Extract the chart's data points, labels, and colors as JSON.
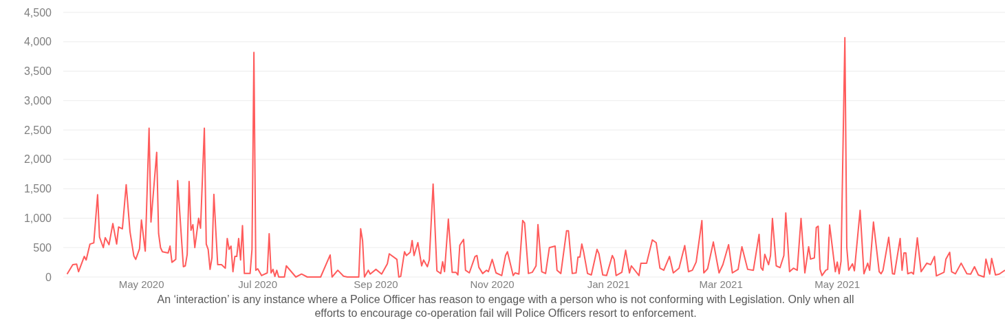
{
  "chart_data": {
    "type": "line",
    "color": "#ff5b5b",
    "line_style": "solid",
    "marker": "none",
    "grid": "y",
    "x": [
      "2020-03-23",
      "2020-03-26",
      "2020-03-28",
      "2020-03-29",
      "2020-04-01",
      "2020-04-02",
      "2020-04-04",
      "2020-04-06",
      "2020-04-08",
      "2020-04-09",
      "2020-04-11",
      "2020-04-12",
      "2020-04-14",
      "2020-04-16",
      "2020-04-18",
      "2020-04-19",
      "2020-04-21",
      "2020-04-23",
      "2020-04-25",
      "2020-04-27",
      "2020-04-28",
      "2020-04-30",
      "2020-05-01",
      "2020-05-03",
      "2020-05-05",
      "2020-05-06",
      "2020-05-09",
      "2020-05-10",
      "2020-05-11",
      "2020-05-12",
      "2020-05-15",
      "2020-05-16",
      "2020-05-17",
      "2020-05-19",
      "2020-05-20",
      "2020-05-22",
      "2020-05-23",
      "2020-05-24",
      "2020-05-25",
      "2020-05-26",
      "2020-05-27",
      "2020-05-28",
      "2020-05-29",
      "2020-05-31",
      "2020-06-01",
      "2020-06-03",
      "2020-06-04",
      "2020-06-05",
      "2020-06-06",
      "2020-06-07",
      "2020-06-08",
      "2020-06-09",
      "2020-06-10",
      "2020-06-12",
      "2020-06-14",
      "2020-06-15",
      "2020-06-16",
      "2020-06-17",
      "2020-06-18",
      "2020-06-19",
      "2020-06-20",
      "2020-06-21",
      "2020-06-22",
      "2020-06-23",
      "2020-06-24",
      "2020-06-27",
      "2020-06-28",
      "2020-06-29",
      "2020-06-30",
      "2020-07-01",
      "2020-07-03",
      "2020-07-06",
      "2020-07-07",
      "2020-07-08",
      "2020-07-09",
      "2020-07-10",
      "2020-07-11",
      "2020-07-12",
      "2020-07-15",
      "2020-07-16",
      "2020-07-21",
      "2020-07-24",
      "2020-07-27",
      "2020-08-03",
      "2020-08-08",
      "2020-08-09",
      "2020-08-12",
      "2020-08-15",
      "2020-08-17",
      "2020-08-23",
      "2020-08-24",
      "2020-08-25",
      "2020-08-26",
      "2020-08-28",
      "2020-08-29",
      "2020-09-01",
      "2020-09-04",
      "2020-09-07",
      "2020-09-08",
      "2020-09-12",
      "2020-09-13",
      "2020-09-14",
      "2020-09-16",
      "2020-09-17",
      "2020-09-19",
      "2020-09-20",
      "2020-09-21",
      "2020-09-23",
      "2020-09-25",
      "2020-09-26",
      "2020-09-28",
      "2020-09-29",
      "2020-10-01",
      "2020-10-03",
      "2020-10-05",
      "2020-10-06",
      "2020-10-07",
      "2020-10-09",
      "2020-10-11",
      "2020-10-13",
      "2020-10-14",
      "2020-10-15",
      "2020-10-17",
      "2020-10-18",
      "2020-10-20",
      "2020-10-23",
      "2020-10-24",
      "2020-10-25",
      "2020-10-27",
      "2020-10-29",
      "2020-10-30",
      "2020-11-01",
      "2020-11-03",
      "2020-11-06",
      "2020-11-08",
      "2020-11-09",
      "2020-11-12",
      "2020-11-13",
      "2020-11-15",
      "2020-11-17",
      "2020-11-18",
      "2020-11-20",
      "2020-11-22",
      "2020-11-24",
      "2020-11-25",
      "2020-11-27",
      "2020-11-29",
      "2020-12-01",
      "2020-12-04",
      "2020-12-05",
      "2020-12-07",
      "2020-12-10",
      "2020-12-11",
      "2020-12-13",
      "2020-12-15",
      "2020-12-16",
      "2020-12-17",
      "2020-12-18",
      "2020-12-19",
      "2020-12-21",
      "2020-12-23",
      "2020-12-26",
      "2020-12-27",
      "2020-12-29",
      "2020-12-31",
      "2021-01-03",
      "2021-01-04",
      "2021-01-05",
      "2021-01-08",
      "2021-01-10",
      "2021-01-12",
      "2021-01-13",
      "2021-01-17",
      "2021-01-18",
      "2021-01-21",
      "2021-01-24",
      "2021-01-26",
      "2021-01-28",
      "2021-01-30",
      "2021-02-02",
      "2021-02-04",
      "2021-02-07",
      "2021-02-10",
      "2021-02-12",
      "2021-02-14",
      "2021-02-16",
      "2021-02-19",
      "2021-02-20",
      "2021-02-22",
      "2021-02-25",
      "2021-02-28",
      "2021-03-02",
      "2021-03-05",
      "2021-03-07",
      "2021-03-10",
      "2021-03-12",
      "2021-03-15",
      "2021-03-18",
      "2021-03-21",
      "2021-03-22",
      "2021-03-23",
      "2021-03-24",
      "2021-03-26",
      "2021-03-27",
      "2021-03-28",
      "2021-03-30",
      "2021-04-01",
      "2021-04-03",
      "2021-04-04",
      "2021-04-06",
      "2021-04-08",
      "2021-04-10",
      "2021-04-12",
      "2021-04-14",
      "2021-04-16",
      "2021-04-17",
      "2021-04-19",
      "2021-04-20",
      "2021-04-21",
      "2021-04-22",
      "2021-04-23",
      "2021-04-25",
      "2021-04-26",
      "2021-04-27",
      "2021-04-30",
      "2021-05-01",
      "2021-05-02",
      "2021-05-03",
      "2021-05-05",
      "2021-05-06",
      "2021-05-07",
      "2021-05-09",
      "2021-05-10",
      "2021-05-13",
      "2021-05-15",
      "2021-05-17",
      "2021-05-18",
      "2021-05-20",
      "2021-05-23",
      "2021-05-24",
      "2021-05-25",
      "2021-05-28",
      "2021-05-30",
      "2021-05-31",
      "2021-06-03",
      "2021-06-04",
      "2021-06-05",
      "2021-06-06",
      "2021-06-07",
      "2021-06-09",
      "2021-06-10",
      "2021-06-12",
      "2021-06-14",
      "2021-06-17",
      "2021-06-19",
      "2021-06-21",
      "2021-06-22",
      "2021-06-26",
      "2021-06-27",
      "2021-06-29",
      "2021-06-30",
      "2021-07-02",
      "2021-07-05",
      "2021-07-08",
      "2021-07-10",
      "2021-07-12",
      "2021-07-14",
      "2021-07-17",
      "2021-07-18",
      "2021-07-20",
      "2021-07-21",
      "2021-07-23",
      "2021-07-25",
      "2021-07-28"
    ],
    "values": [
      50,
      210,
      220,
      90,
      350,
      290,
      560,
      580,
      1400,
      680,
      500,
      670,
      550,
      910,
      560,
      850,
      820,
      1570,
      770,
      360,
      300,
      480,
      970,
      440,
      2530,
      935,
      2120,
      740,
      500,
      430,
      410,
      525,
      250,
      300,
      1640,
      655,
      175,
      190,
      385,
      1625,
      795,
      890,
      500,
      1000,
      830,
      2530,
      560,
      470,
      130,
      330,
      1405,
      795,
      210,
      210,
      150,
      655,
      470,
      525,
      90,
      350,
      350,
      655,
      290,
      875,
      60,
      60,
      470,
      3820,
      115,
      140,
      25,
      70,
      735,
      70,
      130,
      10,
      115,
      0,
      0,
      190,
      0,
      50,
      0,
      0,
      375,
      0,
      115,
      15,
      0,
      0,
      820,
      620,
      0,
      115,
      50,
      130,
      50,
      225,
      395,
      300,
      0,
      10,
      430,
      365,
      420,
      620,
      365,
      585,
      190,
      290,
      175,
      290,
      1580,
      105,
      60,
      260,
      90,
      985,
      80,
      80,
      35,
      540,
      640,
      115,
      70,
      350,
      365,
      165,
      60,
      115,
      90,
      300,
      70,
      25,
      365,
      430,
      25,
      70,
      50,
      960,
      920,
      60,
      80,
      190,
      890,
      90,
      60,
      500,
      525,
      115,
      60,
      785,
      785,
      60,
      70,
      340,
      340,
      560,
      420,
      60,
      35,
      470,
      395,
      35,
      25,
      365,
      300,
      25,
      80,
      455,
      70,
      190,
      25,
      235,
      235,
      630,
      585,
      150,
      115,
      350,
      70,
      150,
      535,
      90,
      115,
      255,
      960,
      70,
      140,
      595,
      70,
      210,
      550,
      70,
      130,
      515,
      130,
      115,
      725,
      160,
      115,
      385,
      210,
      365,
      995,
      190,
      160,
      365,
      1090,
      90,
      150,
      115,
      995,
      70,
      515,
      305,
      325,
      840,
      865,
      130,
      25,
      115,
      130,
      885,
      90,
      255,
      55,
      270,
      4070,
      505,
      115,
      225,
      105,
      1135,
      55,
      235,
      115,
      935,
      90,
      55,
      115,
      675,
      55,
      50,
      655,
      115,
      410,
      410,
      55,
      80,
      50,
      665,
      90,
      235,
      210,
      350,
      20,
      80,
      305,
      420,
      90,
      55,
      235,
      55,
      50,
      175,
      35,
      0,
      305,
      50,
      315,
      35,
      50,
      115
    ],
    "xlim": [
      "2020-03-21",
      "2021-07-28"
    ],
    "xticks": [
      {
        "value": "2020-05-01",
        "label": "May 2020"
      },
      {
        "value": "2020-07-01",
        "label": "Jul 2020"
      },
      {
        "value": "2020-09-01",
        "label": "Sep 2020"
      },
      {
        "value": "2020-11-01",
        "label": "Nov 2020"
      },
      {
        "value": "2021-01-01",
        "label": "Jan 2021"
      },
      {
        "value": "2021-03-01",
        "label": "Mar 2021"
      },
      {
        "value": "2021-05-01",
        "label": "May 2021"
      }
    ],
    "ylim": [
      0,
      4500
    ],
    "yticks": [
      0,
      {
        "value": 500,
        "label": "500"
      },
      {
        "value": 1000,
        "label": "1,000"
      },
      {
        "value": 1500,
        "label": "1,500"
      },
      {
        "value": 2000,
        "label": "2,000"
      },
      {
        "value": 2500,
        "label": "2,500"
      },
      {
        "value": 3000,
        "label": "3,000"
      },
      {
        "value": 3500,
        "label": "3,500"
      },
      {
        "value": 4000,
        "label": "4,000"
      },
      {
        "value": 4500,
        "label": "4,500"
      }
    ],
    "annotations": [
      "An ‘interaction’ is any instance where a Police Officer has reason to engage with a person who is not conforming with Legislation. Only when all efforts to encourage co-operation fail will Police Officers resort to enforcement."
    ]
  }
}
